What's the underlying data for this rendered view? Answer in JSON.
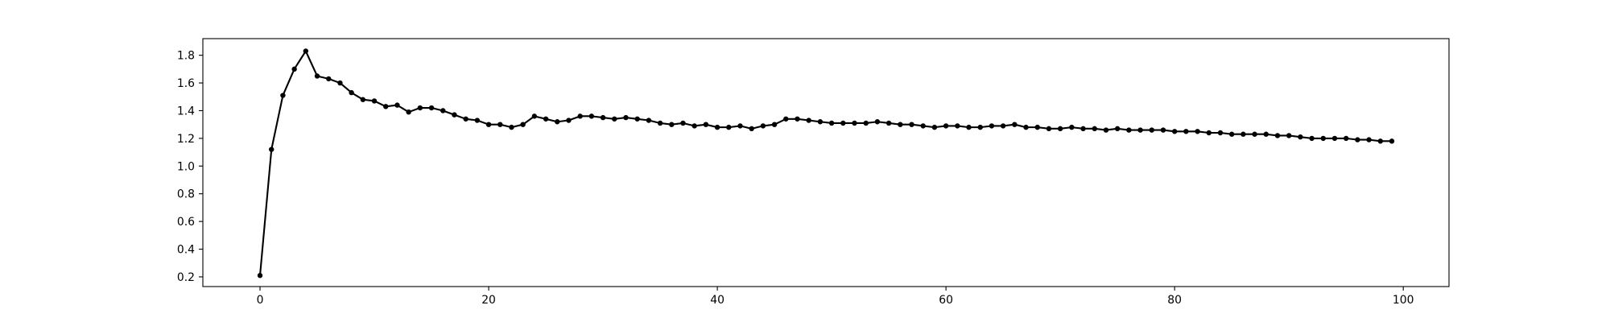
{
  "chart_data": {
    "type": "line",
    "title": "",
    "xlabel": "",
    "ylabel": "",
    "xlim": [
      -5,
      104
    ],
    "ylim": [
      0.13,
      1.92
    ],
    "xticks": [
      0,
      20,
      40,
      60,
      80,
      100
    ],
    "yticks": [
      0.2,
      0.4,
      0.6,
      0.8,
      1.0,
      1.2,
      1.4,
      1.6,
      1.8
    ],
    "xtick_labels": [
      "0",
      "20",
      "40",
      "60",
      "80",
      "100"
    ],
    "ytick_labels": [
      "0.2",
      "0.4",
      "0.6",
      "0.8",
      "1.0",
      "1.2",
      "1.4",
      "1.6",
      "1.8"
    ],
    "grid": false,
    "legend": "none",
    "series": [
      {
        "color": "#000000",
        "marker": "circle",
        "x": [
          0,
          1,
          2,
          3,
          4,
          5,
          6,
          7,
          8,
          9,
          10,
          11,
          12,
          13,
          14,
          15,
          16,
          17,
          18,
          19,
          20,
          21,
          22,
          23,
          24,
          25,
          26,
          27,
          28,
          29,
          30,
          31,
          32,
          33,
          34,
          35,
          36,
          37,
          38,
          39,
          40,
          41,
          42,
          43,
          44,
          45,
          46,
          47,
          48,
          49,
          50,
          51,
          52,
          53,
          54,
          55,
          56,
          57,
          58,
          59,
          60,
          61,
          62,
          63,
          64,
          65,
          66,
          67,
          68,
          69,
          70,
          71,
          72,
          73,
          74,
          75,
          76,
          77,
          78,
          79,
          80,
          81,
          82,
          83,
          84,
          85,
          86,
          87,
          88,
          89,
          90,
          91,
          92,
          93,
          94,
          95,
          96,
          97,
          98,
          99
        ],
        "values": [
          0.21,
          1.12,
          1.51,
          1.7,
          1.83,
          1.65,
          1.63,
          1.6,
          1.53,
          1.48,
          1.47,
          1.43,
          1.44,
          1.39,
          1.42,
          1.42,
          1.4,
          1.37,
          1.34,
          1.33,
          1.3,
          1.3,
          1.28,
          1.3,
          1.36,
          1.34,
          1.32,
          1.33,
          1.36,
          1.36,
          1.35,
          1.34,
          1.35,
          1.34,
          1.33,
          1.31,
          1.3,
          1.31,
          1.29,
          1.3,
          1.28,
          1.28,
          1.29,
          1.27,
          1.29,
          1.3,
          1.34,
          1.34,
          1.33,
          1.32,
          1.31,
          1.31,
          1.31,
          1.31,
          1.32,
          1.31,
          1.3,
          1.3,
          1.29,
          1.28,
          1.29,
          1.29,
          1.28,
          1.28,
          1.29,
          1.29,
          1.3,
          1.28,
          1.28,
          1.27,
          1.27,
          1.28,
          1.27,
          1.27,
          1.26,
          1.27,
          1.26,
          1.26,
          1.26,
          1.26,
          1.25,
          1.25,
          1.25,
          1.24,
          1.24,
          1.23,
          1.23,
          1.23,
          1.23,
          1.22,
          1.22,
          1.21,
          1.2,
          1.2,
          1.2,
          1.2,
          1.19,
          1.19,
          1.18,
          1.18
        ]
      }
    ]
  }
}
